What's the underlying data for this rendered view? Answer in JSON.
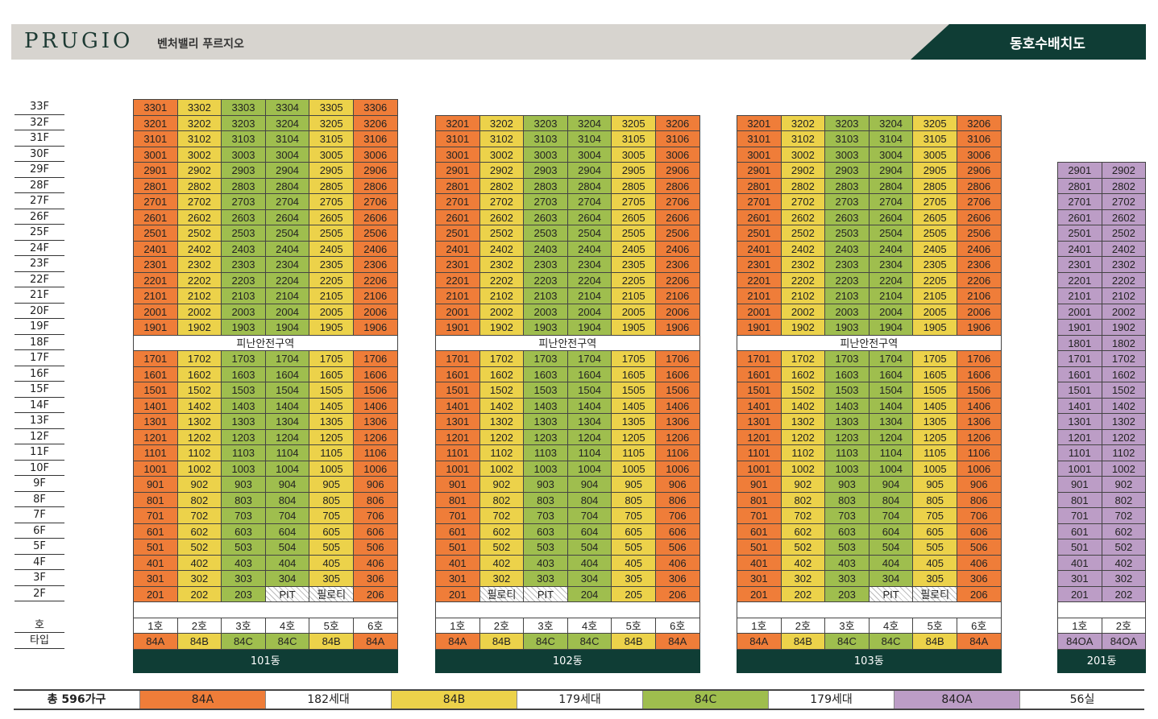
{
  "header": {
    "logo": "PRUGIO",
    "subtitle": "벤처밸리 푸르지오",
    "title": "동호수배치도"
  },
  "floors": [
    "33F",
    "32F",
    "31F",
    "30F",
    "29F",
    "28F",
    "27F",
    "26F",
    "25F",
    "24F",
    "23F",
    "22F",
    "21F",
    "20F",
    "19F",
    "18F",
    "17F",
    "16F",
    "15F",
    "14F",
    "13F",
    "12F",
    "11F",
    "10F",
    "9F",
    "8F",
    "7F",
    "6F",
    "5F",
    "4F",
    "3F",
    "2F"
  ],
  "labels": {
    "ho": "호",
    "type": "타입",
    "refuge": "피난안전구역"
  },
  "buildings": [
    {
      "name": "101동",
      "top_floor": 33,
      "units": 6,
      "types": [
        "84A",
        "84B",
        "84C",
        "84C",
        "84B",
        "84A"
      ],
      "ho": [
        "1호",
        "2호",
        "3호",
        "4호",
        "5호",
        "6호"
      ],
      "floor2": [
        "201",
        "202",
        "203",
        "PIT",
        "필로티",
        "206"
      ],
      "refuge": true
    },
    {
      "name": "102동",
      "top_floor": 32,
      "units": 6,
      "types": [
        "84A",
        "84B",
        "84C",
        "84C",
        "84B",
        "84A"
      ],
      "ho": [
        "1호",
        "2호",
        "3호",
        "4호",
        "5호",
        "6호"
      ],
      "floor2": [
        "201",
        "필로티",
        "PIT",
        "204",
        "205",
        "206"
      ],
      "refuge": true
    },
    {
      "name": "103동",
      "top_floor": 32,
      "units": 6,
      "types": [
        "84A",
        "84B",
        "84C",
        "84C",
        "84B",
        "84A"
      ],
      "ho": [
        "1호",
        "2호",
        "3호",
        "4호",
        "5호",
        "6호"
      ],
      "floor2": [
        "201",
        "202",
        "203",
        "PIT",
        "필로티",
        "206"
      ],
      "refuge": true
    },
    {
      "name": "201동",
      "top_floor": 29,
      "units": 2,
      "types": [
        "84OA",
        "84OA"
      ],
      "ho": [
        "1호",
        "2호"
      ],
      "floor2": [
        "201",
        "202"
      ],
      "refuge": false
    }
  ],
  "legend": {
    "total": "총 596가구",
    "items": [
      {
        "type": "84A",
        "count": "182세대",
        "color": "#ef7d39"
      },
      {
        "type": "84B",
        "count": "179세대",
        "color": "#ecd24a"
      },
      {
        "type": "84C",
        "count": "179세대",
        "color": "#9fbe4e"
      },
      {
        "type": "84OA",
        "count": "56실",
        "color": "#bc9dc6"
      }
    ]
  }
}
